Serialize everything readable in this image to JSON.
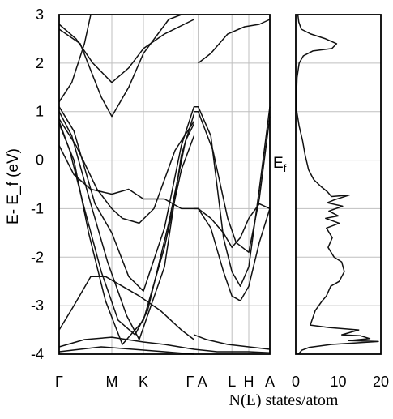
{
  "chart_data": [
    {
      "type": "line",
      "subtype": "band-structure",
      "ylabel": "E- E_f (eV)",
      "ylim": [
        -4,
        3
      ],
      "yticks": [
        -4,
        -3,
        -2,
        -1,
        0,
        1,
        2,
        3
      ],
      "kpath": [
        "Γ",
        "M",
        "K",
        "Γ",
        "A",
        "L",
        "H",
        "A"
      ],
      "kpos": [
        0,
        0.25,
        0.4,
        0.64,
        0.66,
        0.82,
        0.9,
        1.0
      ],
      "grid": true,
      "series": [
        {
          "points": [
            [
              0,
              1.1
            ],
            [
              0.07,
              0.6
            ],
            [
              0.17,
              -0.9
            ],
            [
              0.25,
              -1.5
            ],
            [
              0.33,
              -2.4
            ],
            [
              0.4,
              -2.7
            ],
            [
              0.5,
              -1.4
            ],
            [
              0.58,
              0.3
            ],
            [
              0.64,
              1.1
            ]
          ]
        },
        {
          "points": [
            [
              0,
              1.0
            ],
            [
              0.06,
              0.5
            ],
            [
              0.15,
              -0.9
            ],
            [
              0.23,
              -2.1
            ],
            [
              0.32,
              -3.2
            ],
            [
              0.38,
              -3.7
            ],
            [
              0.5,
              -2.2
            ],
            [
              0.58,
              0.1
            ],
            [
              0.64,
              0.95
            ]
          ]
        },
        {
          "points": [
            [
              0,
              0.85
            ],
            [
              0.08,
              0.3
            ],
            [
              0.18,
              -0.6
            ],
            [
              0.25,
              -1.0
            ],
            [
              0.3,
              -1.2
            ],
            [
              0.38,
              -1.3
            ],
            [
              0.45,
              -1.0
            ],
            [
              0.55,
              0.2
            ],
            [
              0.64,
              0.8
            ]
          ]
        },
        {
          "points": [
            [
              0,
              0.8
            ],
            [
              0.05,
              0.2
            ],
            [
              0.12,
              -1.0
            ],
            [
              0.2,
              -2.3
            ],
            [
              0.28,
              -3.3
            ],
            [
              0.36,
              -3.6
            ],
            [
              0.42,
              -3.1
            ],
            [
              0.52,
              -1.3
            ],
            [
              0.6,
              0.4
            ],
            [
              0.64,
              0.75
            ]
          ]
        },
        {
          "points": [
            [
              0,
              0.75
            ],
            [
              0.07,
              0.0
            ],
            [
              0.14,
              -1.5
            ],
            [
              0.22,
              -2.9
            ],
            [
              0.3,
              -3.8
            ],
            [
              0.4,
              -3.3
            ],
            [
              0.5,
              -1.8
            ],
            [
              0.58,
              -0.2
            ],
            [
              0.64,
              0.5
            ]
          ]
        },
        {
          "points": [
            [
              0,
              0.3
            ],
            [
              0.07,
              -0.3
            ],
            [
              0.15,
              -0.6
            ],
            [
              0.25,
              -0.7
            ],
            [
              0.33,
              -0.6
            ],
            [
              0.4,
              -0.8
            ],
            [
              0.5,
              -0.8
            ],
            [
              0.58,
              -1.0
            ],
            [
              0.64,
              -1.0
            ]
          ]
        },
        {
          "points": [
            [
              0,
              -3.5
            ],
            [
              0.07,
              -3.0
            ],
            [
              0.15,
              -2.4
            ],
            [
              0.22,
              -2.4
            ],
            [
              0.3,
              -2.6
            ],
            [
              0.38,
              -2.8
            ],
            [
              0.48,
              -3.1
            ],
            [
              0.58,
              -3.5
            ],
            [
              0.64,
              -3.7
            ]
          ]
        },
        {
          "points": [
            [
              0,
              -3.85
            ],
            [
              0.12,
              -3.7
            ],
            [
              0.25,
              -3.65
            ],
            [
              0.4,
              -3.75
            ],
            [
              0.5,
              -3.8
            ],
            [
              0.64,
              -3.9
            ]
          ]
        },
        {
          "points": [
            [
              0,
              -3.95
            ],
            [
              0.1,
              -3.9
            ],
            [
              0.2,
              -3.85
            ],
            [
              0.35,
              -3.9
            ],
            [
              0.5,
              -3.95
            ],
            [
              0.64,
              -4.0
            ]
          ]
        },
        {
          "points": [
            [
              0,
              2.8
            ],
            [
              0.08,
              2.5
            ],
            [
              0.16,
              2.0
            ],
            [
              0.25,
              1.6
            ],
            [
              0.33,
              1.9
            ],
            [
              0.4,
              2.3
            ],
            [
              0.5,
              2.6
            ],
            [
              0.64,
              2.9
            ]
          ]
        },
        {
          "points": [
            [
              0,
              2.7
            ],
            [
              0.1,
              2.4
            ],
            [
              0.2,
              1.3
            ],
            [
              0.25,
              0.9
            ],
            [
              0.33,
              1.5
            ],
            [
              0.4,
              2.2
            ],
            [
              0.52,
              2.9
            ],
            [
              0.58,
              3.0
            ]
          ]
        },
        {
          "points": [
            [
              0,
              1.2
            ],
            [
              0.06,
              1.6
            ],
            [
              0.12,
              2.4
            ],
            [
              0.15,
              3.0
            ]
          ]
        },
        {
          "points": [
            [
              0.64,
              1.1
            ],
            [
              0.66,
              1.1
            ],
            [
              0.72,
              0.5
            ],
            [
              0.78,
              -1.6
            ],
            [
              0.82,
              -2.3
            ],
            [
              0.86,
              -2.6
            ],
            [
              0.9,
              -2.2
            ],
            [
              0.95,
              -0.6
            ],
            [
              1.0,
              1.1
            ]
          ]
        },
        {
          "points": [
            [
              0.64,
              1.0
            ],
            [
              0.66,
              1.0
            ],
            [
              0.73,
              0.2
            ],
            [
              0.8,
              -1.2
            ],
            [
              0.84,
              -1.7
            ],
            [
              0.9,
              -1.9
            ],
            [
              0.95,
              -0.8
            ],
            [
              1.0,
              0.9
            ]
          ]
        },
        {
          "points": [
            [
              0.64,
              -1.0
            ],
            [
              0.66,
              -1.0
            ],
            [
              0.72,
              -1.2
            ],
            [
              0.78,
              -1.5
            ],
            [
              0.82,
              -1.8
            ],
            [
              0.86,
              -1.6
            ],
            [
              0.9,
              -1.2
            ],
            [
              0.95,
              -0.9
            ],
            [
              1.0,
              -1.0
            ]
          ]
        },
        {
          "points": [
            [
              0.64,
              -1.0
            ],
            [
              0.66,
              -1.0
            ],
            [
              0.72,
              -1.4
            ],
            [
              0.78,
              -2.3
            ],
            [
              0.82,
              -2.8
            ],
            [
              0.86,
              -2.9
            ],
            [
              0.9,
              -2.6
            ],
            [
              0.95,
              -1.7
            ],
            [
              1.0,
              -1.0
            ]
          ]
        },
        {
          "points": [
            [
              0.66,
              2.0
            ],
            [
              0.72,
              2.2
            ],
            [
              0.8,
              2.6
            ],
            [
              0.88,
              2.75
            ],
            [
              0.95,
              2.8
            ],
            [
              1.0,
              2.9
            ]
          ]
        },
        {
          "points": [
            [
              0.64,
              -3.6
            ],
            [
              0.7,
              -3.7
            ],
            [
              0.8,
              -3.8
            ],
            [
              0.9,
              -3.85
            ],
            [
              1.0,
              -3.9
            ]
          ]
        },
        {
          "points": [
            [
              0.64,
              -3.9
            ],
            [
              0.75,
              -3.95
            ],
            [
              0.9,
              -3.95
            ],
            [
              1.0,
              -3.97
            ]
          ]
        }
      ]
    },
    {
      "type": "line",
      "subtype": "density-of-states",
      "xlabel": "N(E) states/atom",
      "xlim": [
        0,
        20
      ],
      "xticks": [
        0,
        10,
        20
      ],
      "ylim": [
        -4,
        3
      ],
      "fermi_label": "E",
      "fermi_label_sub": "f",
      "grid": true,
      "series": [
        {
          "points": [
            [
              0.5,
              3.0
            ],
            [
              0.7,
              2.85
            ],
            [
              1.3,
              2.7
            ],
            [
              3.5,
              2.6
            ],
            [
              7.0,
              2.5
            ],
            [
              9.6,
              2.4
            ],
            [
              8.5,
              2.3
            ],
            [
              4.0,
              2.25
            ],
            [
              1.8,
              2.15
            ],
            [
              0.8,
              2.0
            ],
            [
              0.3,
              1.7
            ],
            [
              0.15,
              1.3
            ],
            [
              0.25,
              1.0
            ],
            [
              0.8,
              0.7
            ],
            [
              1.6,
              0.4
            ],
            [
              2.2,
              0.1
            ],
            [
              3.0,
              -0.2
            ],
            [
              4.2,
              -0.4
            ],
            [
              6.0,
              -0.55
            ],
            [
              7.4,
              -0.65
            ],
            [
              8.4,
              -0.75
            ],
            [
              12.6,
              -0.72
            ],
            [
              9.0,
              -0.82
            ],
            [
              7.4,
              -0.88
            ],
            [
              11.0,
              -0.95
            ],
            [
              7.8,
              -1.05
            ],
            [
              10.0,
              -1.15
            ],
            [
              7.0,
              -1.2
            ],
            [
              10.2,
              -1.3
            ],
            [
              7.2,
              -1.4
            ],
            [
              8.6,
              -1.6
            ],
            [
              7.6,
              -1.8
            ],
            [
              9.0,
              -2.0
            ],
            [
              10.8,
              -2.1
            ],
            [
              11.4,
              -2.3
            ],
            [
              10.2,
              -2.5
            ],
            [
              8.2,
              -2.6
            ],
            [
              7.2,
              -2.8
            ],
            [
              6.2,
              -2.9
            ],
            [
              4.6,
              -3.1
            ],
            [
              3.4,
              -3.4
            ],
            [
              7.8,
              -3.45
            ],
            [
              14.8,
              -3.5
            ],
            [
              10.8,
              -3.6
            ],
            [
              15.2,
              -3.62
            ],
            [
              17.4,
              -3.68
            ],
            [
              12.4,
              -3.72
            ],
            [
              19.4,
              -3.74
            ],
            [
              8.4,
              -3.8
            ],
            [
              3.2,
              -3.86
            ],
            [
              1.4,
              -3.92
            ],
            [
              0.6,
              -4.0
            ]
          ]
        }
      ]
    }
  ]
}
